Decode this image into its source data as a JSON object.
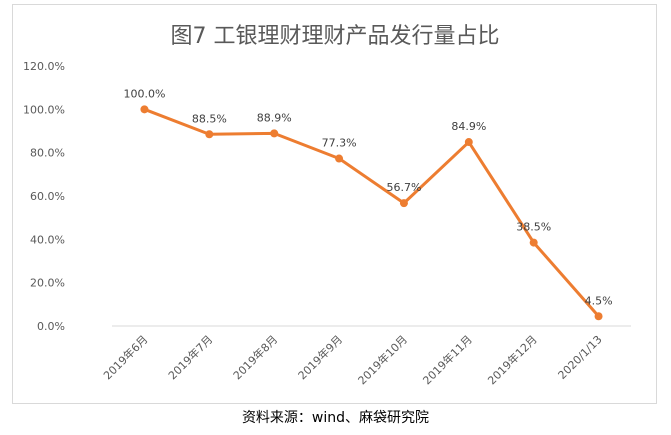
{
  "chart_data": {
    "type": "line",
    "title": "图7 工银理财理财产品发行量占比",
    "categories": [
      "2019年6月",
      "2019年7月",
      "2019年8月",
      "2019年9月",
      "2019年10月",
      "2019年11月",
      "2019年12月",
      "2020/1/13"
    ],
    "series": [
      {
        "values": [
          100.0,
          88.5,
          88.9,
          77.3,
          56.7,
          84.9,
          38.5,
          4.5
        ]
      }
    ],
    "data_labels": [
      "100.0%",
      "88.5%",
      "88.9%",
      "77.3%",
      "56.7%",
      "84.9%",
      "38.5%",
      "4.5%"
    ],
    "ylim": [
      0,
      120
    ],
    "yticks": [
      "0.0%",
      "20.0%",
      "40.0%",
      "60.0%",
      "80.0%",
      "100.0%",
      "120.0%"
    ],
    "grid": false,
    "legend": "none",
    "colors": {
      "line": "#ED7D31",
      "text": "#595959",
      "axis": "#d9d9d9"
    }
  },
  "footer": {
    "source": "资料来源：wind、麻袋研究院"
  }
}
